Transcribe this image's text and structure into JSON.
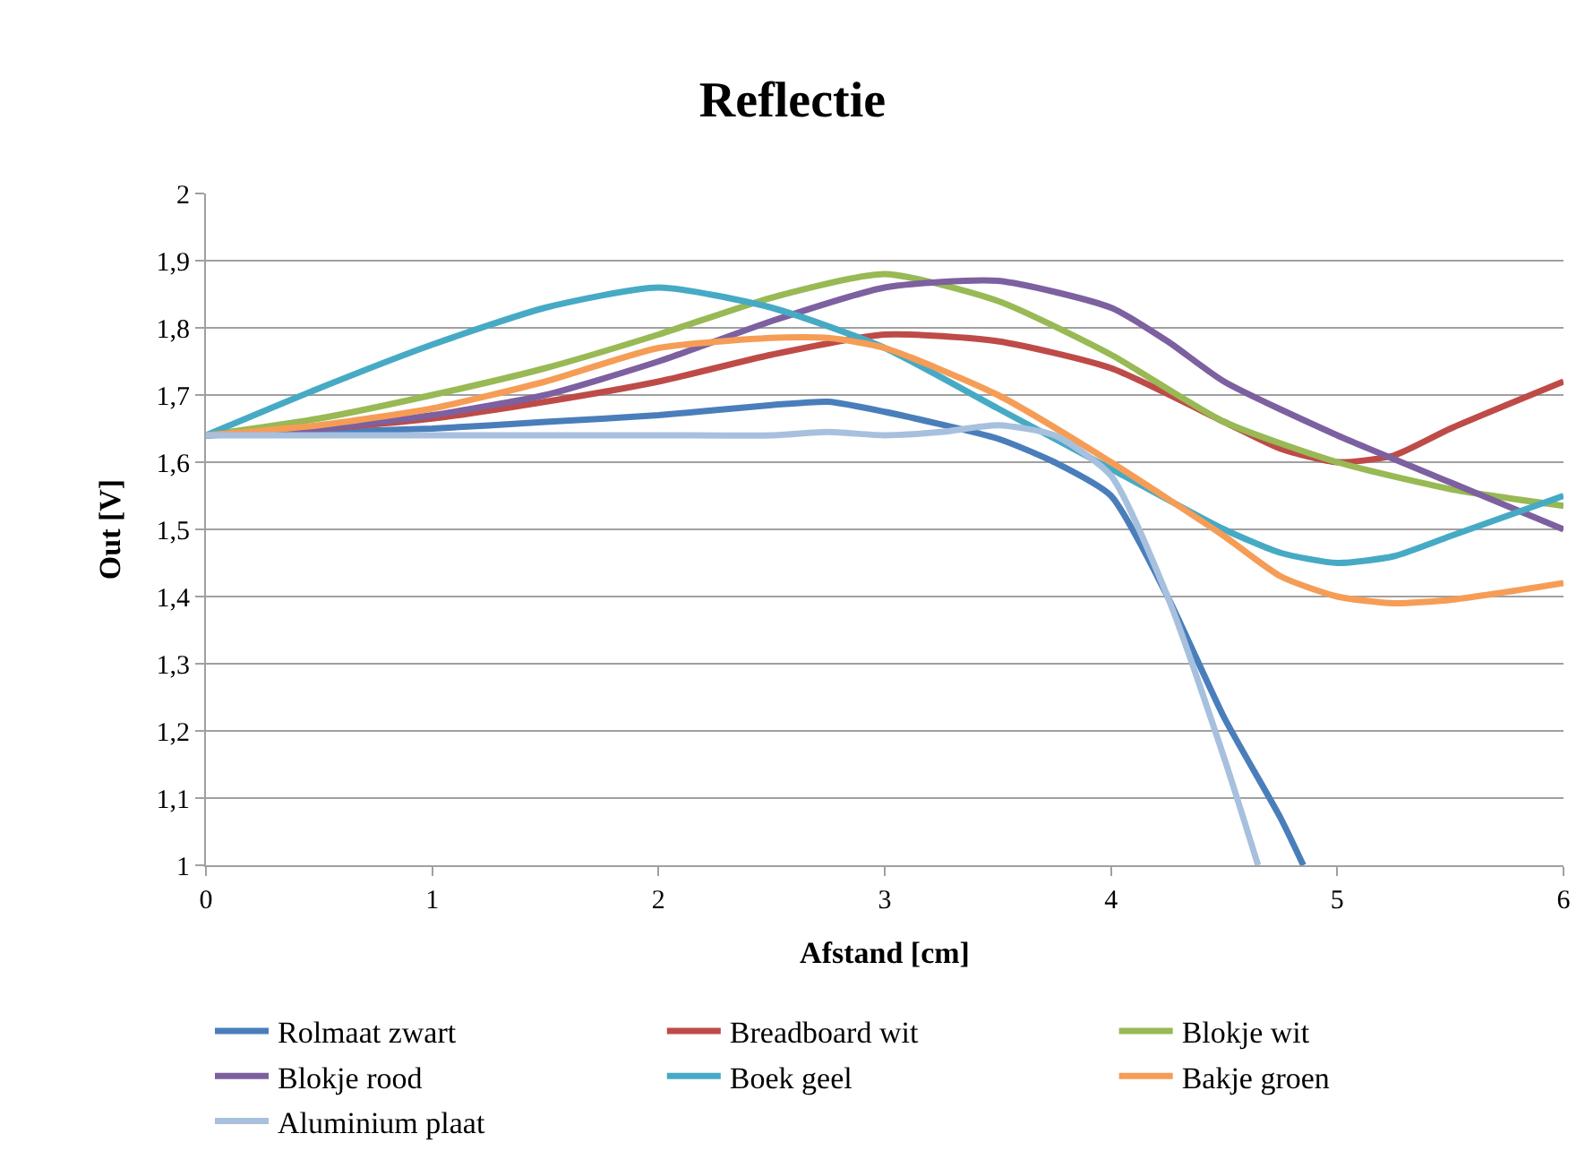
{
  "chart_data": {
    "type": "line",
    "title": "Reflectie",
    "xlabel": "Afstand [cm]",
    "ylabel": "Out [V]",
    "xlim": [
      0,
      6
    ],
    "xticks": [
      0,
      1,
      2,
      3,
      4,
      5,
      6
    ],
    "ylim": [
      1,
      2
    ],
    "yticks": [
      {
        "value": 1,
        "label": "1"
      },
      {
        "value": 1.1,
        "label": "1,1"
      },
      {
        "value": 1.2,
        "label": "1,2"
      },
      {
        "value": 1.3,
        "label": "1,3"
      },
      {
        "value": 1.4,
        "label": "1,4"
      },
      {
        "value": 1.5,
        "label": "1,5"
      },
      {
        "value": 1.6,
        "label": "1,6"
      },
      {
        "value": 1.7,
        "label": "1,7"
      },
      {
        "value": 1.8,
        "label": "1,8"
      },
      {
        "value": 1.9,
        "label": "1,9"
      },
      {
        "value": 2,
        "label": "2"
      }
    ],
    "grid": "y",
    "legend": "bottom",
    "marker": "none",
    "line_style": "solid",
    "series": [
      {
        "name": "Rolmaat zwart",
        "color": "#4a7ebb",
        "x": [
          0,
          0.5,
          1,
          1.5,
          2,
          2.5,
          2.75,
          3,
          3.5,
          3.75,
          4,
          4.25,
          4.5,
          4.75,
          4.85
        ],
        "values": [
          1.64,
          1.645,
          1.65,
          1.66,
          1.67,
          1.685,
          1.69,
          1.675,
          1.635,
          1.6,
          1.55,
          1.4,
          1.22,
          1.07,
          1.0
        ]
      },
      {
        "name": "Breadboard wit",
        "color": "#be4b48",
        "x": [
          0,
          0.5,
          1,
          1.5,
          2,
          2.5,
          3,
          3.5,
          4,
          4.5,
          4.75,
          5,
          5.25,
          5.5,
          6
        ],
        "values": [
          1.64,
          1.65,
          1.665,
          1.69,
          1.72,
          1.76,
          1.79,
          1.78,
          1.74,
          1.66,
          1.62,
          1.6,
          1.61,
          1.65,
          1.72
        ]
      },
      {
        "name": "Blokje wit",
        "color": "#98b954",
        "x": [
          0,
          0.5,
          1,
          1.5,
          2,
          2.5,
          3,
          3.5,
          4,
          4.5,
          5,
          5.5,
          6
        ],
        "values": [
          1.64,
          1.665,
          1.7,
          1.74,
          1.79,
          1.845,
          1.88,
          1.84,
          1.76,
          1.66,
          1.6,
          1.56,
          1.535
        ]
      },
      {
        "name": "Blokje rood",
        "color": "#7d60a0",
        "x": [
          0,
          0.5,
          1,
          1.5,
          2,
          2.5,
          3,
          3.5,
          4,
          4.25,
          4.5,
          5,
          5.5,
          6
        ],
        "values": [
          1.64,
          1.65,
          1.67,
          1.7,
          1.75,
          1.81,
          1.86,
          1.87,
          1.83,
          1.78,
          1.72,
          1.64,
          1.57,
          1.5
        ]
      },
      {
        "name": "Boek geel",
        "color": "#46aac5",
        "x": [
          0,
          0.5,
          1,
          1.5,
          2,
          2.5,
          3,
          3.5,
          4,
          4.5,
          4.75,
          5,
          5.25,
          5.5,
          6
        ],
        "values": [
          1.64,
          1.71,
          1.775,
          1.83,
          1.86,
          1.83,
          1.77,
          1.68,
          1.59,
          1.5,
          1.465,
          1.45,
          1.46,
          1.49,
          1.55
        ]
      },
      {
        "name": "Bakje groen",
        "color": "#f59d56",
        "x": [
          0,
          0.5,
          1,
          1.5,
          2,
          2.5,
          2.75,
          3,
          3.5,
          4,
          4.5,
          4.75,
          5,
          5.25,
          5.5,
          6
        ],
        "values": [
          1.64,
          1.655,
          1.68,
          1.72,
          1.77,
          1.785,
          1.785,
          1.77,
          1.7,
          1.6,
          1.49,
          1.43,
          1.4,
          1.39,
          1.395,
          1.42
        ]
      },
      {
        "name": "Aluminium plaat",
        "color": "#a7c0de",
        "x": [
          0,
          0.5,
          1,
          1.5,
          2,
          2.5,
          2.75,
          3,
          3.25,
          3.5,
          3.75,
          4,
          4.25,
          4.5,
          4.65
        ],
        "values": [
          1.64,
          1.64,
          1.64,
          1.64,
          1.64,
          1.64,
          1.645,
          1.64,
          1.645,
          1.655,
          1.64,
          1.58,
          1.4,
          1.16,
          1.0
        ]
      }
    ]
  }
}
